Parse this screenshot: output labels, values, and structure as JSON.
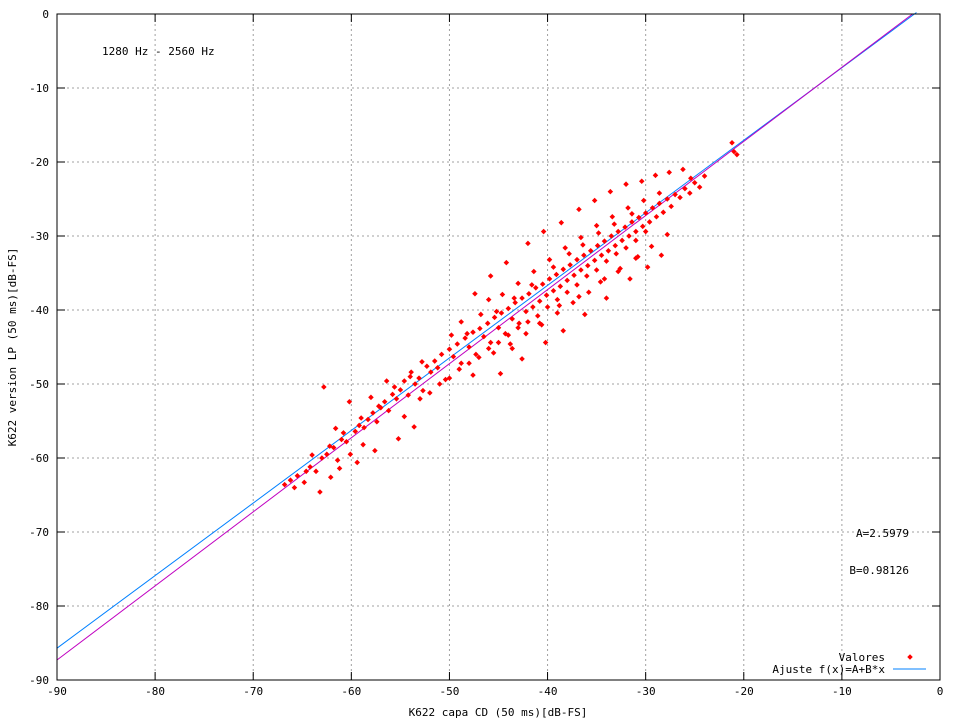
{
  "chart_data": {
    "type": "scatter",
    "annotation": "1280 Hz - 2560 Hz",
    "xlabel": "K622 capa CD (50 ms)[dB-FS]",
    "ylabel": "K622 version LP (50 ms)[dB-FS]",
    "xlim": [
      -90,
      0
    ],
    "ylim": [
      -90,
      0
    ],
    "xticks": [
      -90,
      -80,
      -70,
      -60,
      -50,
      -40,
      -30,
      -20,
      -10,
      0
    ],
    "yticks": [
      -90,
      -80,
      -70,
      -60,
      -50,
      -40,
      -30,
      -20,
      -10,
      0
    ],
    "xtick_labels": [
      "-90",
      "-80",
      "-70",
      "-60",
      "-50",
      "-40",
      "-30",
      "-20",
      "-10",
      "0"
    ],
    "ytick_labels": [
      "-90",
      "-80",
      "-70",
      "-60",
      "-50",
      "-40",
      "-30",
      "-20",
      "-10",
      "0"
    ],
    "grid": true,
    "legend_position": "bottom-right",
    "fit_params": {
      "A_text": "A=2.5979",
      "B_text": "B=0.98126",
      "A": 2.5979,
      "B": 0.98126
    },
    "series": [
      {
        "name": "Valores",
        "kind": "points",
        "color": "#ff0000",
        "points": [
          [
            -66.8,
            -63.6
          ],
          [
            -66.2,
            -63.0
          ],
          [
            -65.5,
            -62.4
          ],
          [
            -64.8,
            -63.3
          ],
          [
            -64.2,
            -61.2
          ],
          [
            -63.6,
            -61.8
          ],
          [
            -63.0,
            -60.0
          ],
          [
            -62.8,
            -50.4
          ],
          [
            -62.5,
            -59.5
          ],
          [
            -62.1,
            -62.6
          ],
          [
            -61.8,
            -58.6
          ],
          [
            -61.4,
            -60.3
          ],
          [
            -61.0,
            -57.5
          ],
          [
            -60.5,
            -57.8
          ],
          [
            -60.1,
            -59.5
          ],
          [
            -59.6,
            -56.4
          ],
          [
            -59.2,
            -55.6
          ],
          [
            -58.7,
            -55.9
          ],
          [
            -58.3,
            -54.8
          ],
          [
            -58.0,
            -51.8
          ],
          [
            -57.8,
            -53.9
          ],
          [
            -57.4,
            -55.1
          ],
          [
            -57.0,
            -53.2
          ],
          [
            -56.6,
            -52.4
          ],
          [
            -56.2,
            -53.6
          ],
          [
            -55.8,
            -51.4
          ],
          [
            -55.4,
            -52.0
          ],
          [
            -55.0,
            -50.8
          ],
          [
            -54.6,
            -49.6
          ],
          [
            -54.2,
            -51.5
          ],
          [
            -53.9,
            -48.4
          ],
          [
            -53.5,
            -50.0
          ],
          [
            -53.1,
            -49.2
          ],
          [
            -52.7,
            -50.9
          ],
          [
            -52.3,
            -47.6
          ],
          [
            -51.9,
            -48.4
          ],
          [
            -51.5,
            -46.9
          ],
          [
            -51.2,
            -47.8
          ],
          [
            -50.8,
            -46.0
          ],
          [
            -50.4,
            -49.4
          ],
          [
            -50.0,
            -45.3
          ],
          [
            -49.6,
            -46.3
          ],
          [
            -49.2,
            -44.6
          ],
          [
            -48.8,
            -47.2
          ],
          [
            -48.4,
            -43.8
          ],
          [
            -48.0,
            -45.0
          ],
          [
            -47.6,
            -43.0
          ],
          [
            -47.3,
            -46.0
          ],
          [
            -46.9,
            -42.5
          ],
          [
            -46.5,
            -43.6
          ],
          [
            -46.1,
            -41.8
          ],
          [
            -45.8,
            -44.4
          ],
          [
            -45.4,
            -41.0
          ],
          [
            -45.0,
            -42.4
          ],
          [
            -44.7,
            -40.4
          ],
          [
            -44.3,
            -43.2
          ],
          [
            -44.0,
            -39.8
          ],
          [
            -43.6,
            -41.2
          ],
          [
            -43.3,
            -39.0
          ],
          [
            -42.9,
            -41.8
          ],
          [
            -42.6,
            -38.4
          ],
          [
            -42.2,
            -40.2
          ],
          [
            -41.9,
            -37.8
          ],
          [
            -41.5,
            -39.6
          ],
          [
            -41.2,
            -37.0
          ],
          [
            -40.8,
            -38.8
          ],
          [
            -40.5,
            -36.5
          ],
          [
            -40.1,
            -38.0
          ],
          [
            -39.8,
            -35.8
          ],
          [
            -39.4,
            -37.4
          ],
          [
            -39.1,
            -35.2
          ],
          [
            -38.7,
            -36.8
          ],
          [
            -38.4,
            -34.5
          ],
          [
            -38.0,
            -36.0
          ],
          [
            -37.7,
            -33.9
          ],
          [
            -37.3,
            -35.3
          ],
          [
            -37.0,
            -33.2
          ],
          [
            -36.6,
            -34.6
          ],
          [
            -36.3,
            -32.6
          ],
          [
            -35.9,
            -34.0
          ],
          [
            -35.6,
            -32.0
          ],
          [
            -35.2,
            -33.3
          ],
          [
            -34.9,
            -31.3
          ],
          [
            -34.5,
            -32.6
          ],
          [
            -34.2,
            -30.7
          ],
          [
            -33.8,
            -32.0
          ],
          [
            -33.5,
            -30.0
          ],
          [
            -33.1,
            -31.3
          ],
          [
            -32.8,
            -29.4
          ],
          [
            -32.4,
            -30.6
          ],
          [
            -32.1,
            -28.8
          ],
          [
            -31.7,
            -30.0
          ],
          [
            -31.4,
            -28.1
          ],
          [
            -31.0,
            -29.4
          ],
          [
            -30.7,
            -27.5
          ],
          [
            -30.3,
            -28.7
          ],
          [
            -30.0,
            -26.9
          ],
          [
            -29.6,
            -28.1
          ],
          [
            -29.3,
            -26.2
          ],
          [
            -28.9,
            -27.4
          ],
          [
            -28.6,
            -25.6
          ],
          [
            -28.2,
            -26.8
          ],
          [
            -27.8,
            -25.0
          ],
          [
            -27.4,
            -26.0
          ],
          [
            -27.0,
            -24.4
          ],
          [
            -26.5,
            -24.8
          ],
          [
            -26.0,
            -23.6
          ],
          [
            -25.5,
            -24.2
          ],
          [
            -25.0,
            -22.8
          ],
          [
            -24.5,
            -23.4
          ],
          [
            -24.0,
            -21.9
          ],
          [
            -21.2,
            -17.4
          ],
          [
            -21.0,
            -18.6
          ],
          [
            -20.7,
            -19.0
          ],
          [
            -46.0,
            -38.6
          ],
          [
            -45.5,
            -45.8
          ],
          [
            -44.6,
            -37.9
          ],
          [
            -43.8,
            -44.6
          ],
          [
            -43.0,
            -36.4
          ],
          [
            -42.2,
            -43.2
          ],
          [
            -41.4,
            -34.8
          ],
          [
            -40.6,
            -42.0
          ],
          [
            -39.8,
            -33.2
          ],
          [
            -39.0,
            -40.4
          ],
          [
            -38.2,
            -31.6
          ],
          [
            -37.4,
            -39.0
          ],
          [
            -36.6,
            -30.2
          ],
          [
            -35.8,
            -37.6
          ],
          [
            -35.0,
            -28.6
          ],
          [
            -34.2,
            -35.8
          ],
          [
            -33.4,
            -27.4
          ],
          [
            -32.6,
            -34.4
          ],
          [
            -31.8,
            -26.2
          ],
          [
            -31.0,
            -33.0
          ],
          [
            -30.2,
            -25.2
          ],
          [
            -29.4,
            -31.4
          ],
          [
            -28.6,
            -24.2
          ],
          [
            -27.8,
            -29.8
          ],
          [
            -48.8,
            -41.6
          ],
          [
            -47.6,
            -48.8
          ],
          [
            -49.8,
            -43.4
          ],
          [
            -52.8,
            -47.0
          ],
          [
            -54.6,
            -54.4
          ],
          [
            -56.4,
            -49.6
          ],
          [
            -58.8,
            -58.2
          ],
          [
            -60.2,
            -52.4
          ],
          [
            -61.6,
            -56.0
          ],
          [
            -64.0,
            -59.6
          ],
          [
            -65.8,
            -64.0
          ],
          [
            -63.2,
            -64.6
          ],
          [
            -38.6,
            -28.2
          ],
          [
            -36.8,
            -26.4
          ],
          [
            -35.2,
            -25.2
          ],
          [
            -33.6,
            -24.0
          ],
          [
            -32.0,
            -23.0
          ],
          [
            -30.4,
            -22.6
          ],
          [
            -29.0,
            -21.8
          ],
          [
            -27.6,
            -21.4
          ],
          [
            -26.2,
            -21.0
          ],
          [
            -25.4,
            -22.2
          ],
          [
            -40.4,
            -29.4
          ],
          [
            -42.0,
            -31.0
          ],
          [
            -44.2,
            -33.6
          ],
          [
            -45.8,
            -35.4
          ],
          [
            -47.4,
            -37.8
          ],
          [
            -34.0,
            -38.4
          ],
          [
            -36.2,
            -40.6
          ],
          [
            -38.4,
            -42.8
          ],
          [
            -40.2,
            -44.4
          ],
          [
            -42.6,
            -46.6
          ],
          [
            -44.8,
            -48.6
          ],
          [
            -31.6,
            -35.8
          ],
          [
            -29.8,
            -34.2
          ],
          [
            -28.4,
            -32.6
          ],
          [
            -41.0,
            -40.8
          ],
          [
            -40.0,
            -39.6
          ],
          [
            -39.0,
            -38.6
          ],
          [
            -38.0,
            -37.6
          ],
          [
            -37.0,
            -36.6
          ],
          [
            -36.0,
            -35.4
          ],
          [
            -35.0,
            -34.6
          ],
          [
            -34.0,
            -33.4
          ],
          [
            -33.0,
            -32.4
          ],
          [
            -32.0,
            -31.6
          ],
          [
            -31.0,
            -30.6
          ],
          [
            -30.0,
            -29.4
          ],
          [
            -42.0,
            -41.6
          ],
          [
            -43.0,
            -42.4
          ],
          [
            -44.0,
            -43.4
          ],
          [
            -45.0,
            -44.4
          ],
          [
            -46.0,
            -45.2
          ],
          [
            -47.0,
            -46.4
          ],
          [
            -48.0,
            -47.2
          ],
          [
            -49.0,
            -48.0
          ],
          [
            -50.0,
            -49.2
          ],
          [
            -51.0,
            -50.0
          ],
          [
            -52.0,
            -51.2
          ],
          [
            -53.0,
            -52.0
          ],
          [
            -39.4,
            -34.2
          ],
          [
            -37.8,
            -32.4
          ],
          [
            -36.4,
            -31.2
          ],
          [
            -34.8,
            -29.6
          ],
          [
            -33.2,
            -28.4
          ],
          [
            -31.4,
            -27.0
          ],
          [
            -43.4,
            -38.4
          ],
          [
            -45.2,
            -40.2
          ],
          [
            -41.6,
            -36.6
          ],
          [
            -46.8,
            -40.6
          ],
          [
            -48.2,
            -43.2
          ],
          [
            -38.8,
            -39.4
          ],
          [
            -36.8,
            -38.2
          ],
          [
            -34.6,
            -36.2
          ],
          [
            -32.8,
            -34.8
          ],
          [
            -30.8,
            -32.8
          ],
          [
            -40.8,
            -41.8
          ],
          [
            -43.6,
            -45.2
          ],
          [
            -54.0,
            -49.0
          ],
          [
            -55.6,
            -50.4
          ],
          [
            -57.2,
            -53.0
          ],
          [
            -59.0,
            -54.6
          ],
          [
            -60.8,
            -56.6
          ],
          [
            -62.2,
            -58.4
          ],
          [
            -53.6,
            -55.8
          ],
          [
            -55.2,
            -57.4
          ],
          [
            -57.6,
            -59.0
          ],
          [
            -59.4,
            -60.6
          ],
          [
            -61.2,
            -61.4
          ],
          [
            -64.6,
            -61.8
          ]
        ]
      },
      {
        "name": "Ajuste f(x)=A+B*x",
        "kind": "line",
        "color": "#0080ff",
        "x": [
          -90,
          -2.4
        ],
        "y": [
          -85.7,
          0.2
        ]
      },
      {
        "name": "",
        "kind": "line",
        "color": "#c000c0",
        "x": [
          -90,
          -2.8
        ],
        "y": [
          -87.3,
          0.0
        ]
      }
    ]
  }
}
